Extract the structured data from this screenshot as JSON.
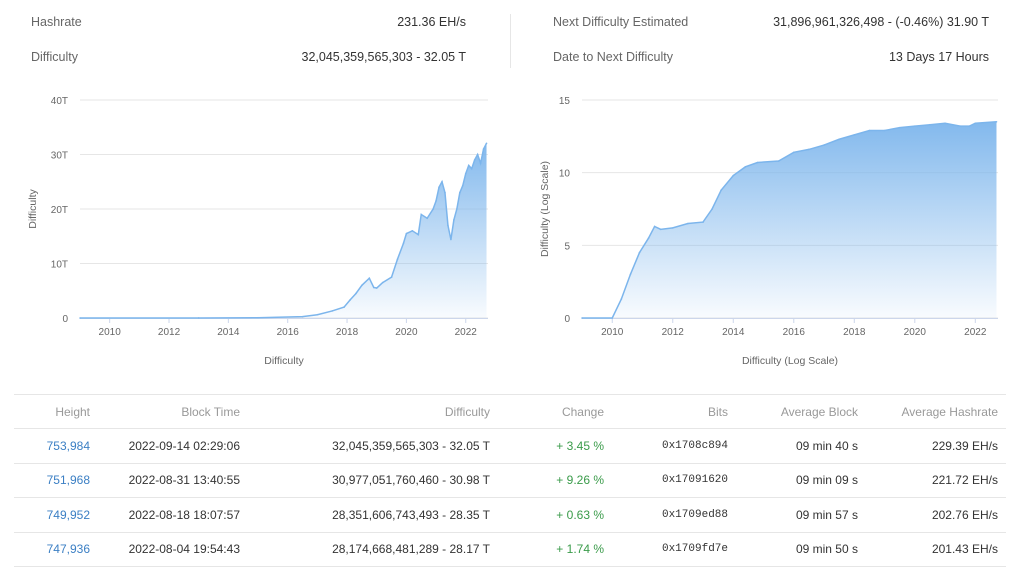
{
  "stats": {
    "hashrate_label": "Hashrate",
    "hashrate_value": "231.36 EH/s",
    "difficulty_label": "Difficulty",
    "difficulty_value": "32,045,359,565,303 - 32.05 T",
    "next_label": "Next Difficulty Estimated",
    "next_value": "31,896,961,326,498 - (-0.46%) 31.90 T",
    "date_label": "Date to Next Difficulty",
    "date_value": "13 Days 17 Hours"
  },
  "chart_data": [
    {
      "type": "area",
      "title": "",
      "ylabel": "Difficulty",
      "xlabel": "Difficulty",
      "ylim": [
        0,
        40
      ],
      "yticks": [
        "0",
        "10T",
        "20T",
        "30T",
        "40T"
      ],
      "xticks": [
        "2010",
        "2012",
        "2014",
        "2016",
        "2018",
        "2020",
        "2022"
      ],
      "grid": true,
      "color": "#7cb5ec",
      "x": [
        2009.0,
        2013.0,
        2015.0,
        2016.5,
        2017.0,
        2017.5,
        2017.9,
        2018.1,
        2018.3,
        2018.5,
        2018.75,
        2018.9,
        2019.0,
        2019.2,
        2019.5,
        2019.7,
        2019.9,
        2020.0,
        2020.2,
        2020.4,
        2020.5,
        2020.7,
        2020.9,
        2021.0,
        2021.1,
        2021.2,
        2021.3,
        2021.4,
        2021.5,
        2021.6,
        2021.7,
        2021.8,
        2021.9,
        2022.0,
        2022.1,
        2022.2,
        2022.3,
        2022.4,
        2022.5,
        2022.6,
        2022.7
      ],
      "y": [
        0.0,
        0.01,
        0.05,
        0.25,
        0.6,
        1.3,
        2.0,
        3.3,
        4.5,
        6.0,
        7.3,
        5.6,
        5.5,
        6.5,
        7.5,
        10.8,
        13.7,
        15.5,
        16.0,
        15.3,
        19.0,
        18.3,
        20.0,
        21.5,
        24.0,
        25.0,
        23.0,
        17.0,
        14.4,
        18.0,
        20.0,
        23.0,
        24.3,
        26.5,
        28.0,
        27.4,
        29.0,
        30.0,
        28.4,
        31.0,
        32.05
      ]
    },
    {
      "type": "area",
      "title": "",
      "ylabel": "Difficulty (Log Scale)",
      "xlabel": "Difficulty (Log Scale)",
      "ylim": [
        0,
        15
      ],
      "yticks": [
        "0",
        "5",
        "10",
        "15"
      ],
      "xticks": [
        "2010",
        "2012",
        "2014",
        "2016",
        "2018",
        "2020",
        "2022"
      ],
      "grid": true,
      "color": "#7cb5ec",
      "x": [
        2009.0,
        2010.0,
        2010.3,
        2010.6,
        2010.9,
        2011.2,
        2011.4,
        2011.6,
        2012.0,
        2012.5,
        2013.0,
        2013.3,
        2013.6,
        2014.0,
        2014.4,
        2014.8,
        2015.5,
        2016.0,
        2016.5,
        2017.0,
        2017.5,
        2018.0,
        2018.5,
        2019.0,
        2019.5,
        2020.0,
        2020.5,
        2021.0,
        2021.5,
        2021.8,
        2022.0,
        2022.7
      ],
      "y": [
        0.0,
        0.0,
        1.3,
        3.0,
        4.5,
        5.5,
        6.3,
        6.1,
        6.2,
        6.5,
        6.6,
        7.5,
        8.8,
        9.8,
        10.4,
        10.7,
        10.8,
        11.4,
        11.6,
        11.9,
        12.3,
        12.6,
        12.9,
        12.9,
        13.1,
        13.2,
        13.3,
        13.4,
        13.2,
        13.2,
        13.4,
        13.5
      ]
    }
  ],
  "table": {
    "headers": {
      "height": "Height",
      "time": "Block Time",
      "difficulty": "Difficulty",
      "change": "Change",
      "bits": "Bits",
      "avg_block": "Average Block",
      "avg_hashrate": "Average Hashrate"
    },
    "rows": [
      {
        "height": "753,984",
        "time": "2022-09-14 02:29:06",
        "difficulty": "32,045,359,565,303 - 32.05 T",
        "change": "+ 3.45 %",
        "bits": "0x1708c894",
        "avg_block": "09 min 40 s",
        "avg_hashrate": "229.39 EH/s"
      },
      {
        "height": "751,968",
        "time": "2022-08-31 13:40:55",
        "difficulty": "30,977,051,760,460 - 30.98 T",
        "change": "+ 9.26 %",
        "bits": "0x17091620",
        "avg_block": "09 min 09 s",
        "avg_hashrate": "221.72 EH/s"
      },
      {
        "height": "749,952",
        "time": "2022-08-18 18:07:57",
        "difficulty": "28,351,606,743,493 - 28.35 T",
        "change": "+ 0.63 %",
        "bits": "0x1709ed88",
        "avg_block": "09 min 57 s",
        "avg_hashrate": "202.76 EH/s"
      },
      {
        "height": "747,936",
        "time": "2022-08-04 19:54:43",
        "difficulty": "28,174,668,481,289 - 28.17 T",
        "change": "+ 1.74 %",
        "bits": "0x1709fd7e",
        "avg_block": "09 min 50 s",
        "avg_hashrate": "201.43 EH/s"
      }
    ]
  }
}
